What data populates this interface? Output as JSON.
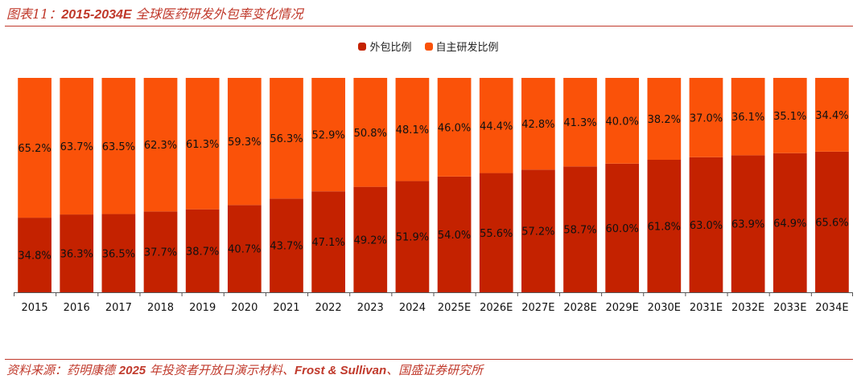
{
  "header": {
    "title_prefix": "图表11：",
    "title_years": "2015-2034E",
    "title_text": " 全球医药研发外包率变化情况"
  },
  "source": {
    "prefix": "资料来源：药明康德 ",
    "year": "2025",
    "middle": " 年投资者开放日演示材料、",
    "frost": "Frost & Sullivan",
    "suffix": "、国盛证券研究所"
  },
  "colors": {
    "outsourced": "#C42200",
    "inhouse": "#FA5209",
    "accent": "#c0392b"
  },
  "chart_data": {
    "type": "bar",
    "stacked": true,
    "categories": [
      "2015",
      "2016",
      "2017",
      "2018",
      "2019",
      "2020",
      "2021",
      "2022",
      "2023",
      "2024",
      "2025E",
      "2026E",
      "2027E",
      "2028E",
      "2029E",
      "2030E",
      "2031E",
      "2032E",
      "2033E",
      "2034E"
    ],
    "series": [
      {
        "name": "外包比例",
        "values": [
          34.8,
          36.3,
          36.5,
          37.7,
          38.7,
          40.7,
          43.7,
          47.1,
          49.2,
          51.9,
          54.0,
          55.6,
          57.2,
          58.7,
          60.0,
          61.8,
          63.0,
          63.9,
          64.9,
          65.6
        ],
        "labels": [
          "34.8%",
          "36.3%",
          "36.5%",
          "37.7%",
          "38.7%",
          "40.7%",
          "43.7%",
          "47.1%",
          "49.2%",
          "51.9%",
          "54.0%",
          "55.6%",
          "57.2%",
          "58.7%",
          "60.0%",
          "61.8%",
          "63.0%",
          "63.9%",
          "64.9%",
          "65.6%"
        ]
      },
      {
        "name": "自主研发比例",
        "values": [
          65.2,
          63.7,
          63.5,
          62.3,
          61.3,
          59.3,
          56.3,
          52.9,
          50.8,
          48.1,
          46.0,
          44.4,
          42.8,
          41.3,
          40.0,
          38.2,
          37.0,
          36.1,
          35.1,
          34.4
        ],
        "labels": [
          "65.2%",
          "63.7%",
          "63.5%",
          "62.3%",
          "61.3%",
          "59.3%",
          "56.3%",
          "52.9%",
          "50.8%",
          "48.1%",
          "46.0%",
          "44.4%",
          "42.8%",
          "41.3%",
          "40.0%",
          "38.2%",
          "37.0%",
          "36.1%",
          "35.1%",
          "34.4%"
        ]
      }
    ],
    "ylim": [
      0,
      100
    ],
    "legend": "top-center",
    "grid": false
  }
}
